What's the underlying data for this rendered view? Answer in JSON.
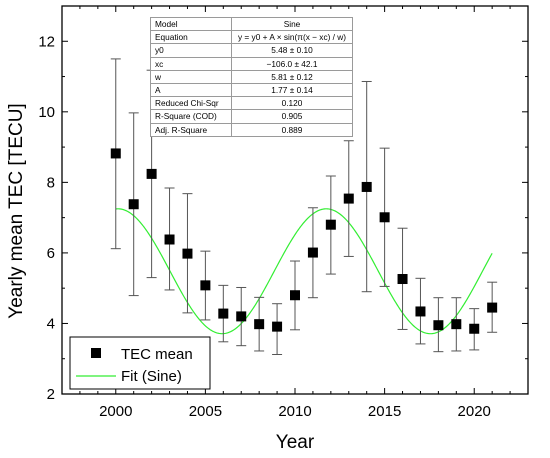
{
  "chart_data": {
    "type": "scatter",
    "xlabel": "Year",
    "ylabel": "Yearly mean TEC [TECU]",
    "xlim": [
      1997,
      2023
    ],
    "ylim": [
      2,
      13
    ],
    "x_ticks": [
      2000,
      2005,
      2010,
      2015,
      2020
    ],
    "y_ticks": [
      2,
      4,
      6,
      8,
      10,
      12
    ],
    "grid": false,
    "legend_position": "bottom-left",
    "series": [
      {
        "name": "TEC mean",
        "kind": "scatter-errorbar",
        "color": "#000000",
        "x": [
          2000,
          2001,
          2002,
          2003,
          2004,
          2005,
          2006,
          2007,
          2008,
          2009,
          2010,
          2011,
          2012,
          2013,
          2014,
          2015,
          2016,
          2017,
          2018,
          2019,
          2020,
          2021
        ],
        "y": [
          8.82,
          7.38,
          8.24,
          6.38,
          5.98,
          5.08,
          4.28,
          4.2,
          3.98,
          3.91,
          4.8,
          6.01,
          6.8,
          7.54,
          7.87,
          7.01,
          5.26,
          4.34,
          3.95,
          3.98,
          3.85,
          4.45
        ],
        "err_low": [
          6.12,
          4.79,
          5.3,
          4.95,
          4.3,
          4.1,
          3.48,
          3.37,
          3.22,
          3.12,
          3.82,
          4.73,
          5.4,
          5.9,
          4.9,
          5.05,
          3.83,
          3.42,
          3.2,
          3.22,
          3.25,
          3.75
        ],
        "err_high": [
          11.5,
          9.97,
          11.18,
          7.84,
          7.68,
          6.05,
          5.08,
          5.02,
          4.74,
          4.56,
          5.77,
          7.28,
          8.18,
          9.18,
          10.86,
          8.97,
          6.7,
          5.28,
          4.73,
          4.73,
          4.42,
          5.17
        ]
      },
      {
        "name": "Fit (Sine)",
        "kind": "line",
        "color": "#33ee33",
        "model": {
          "y0": 5.48,
          "xc": -106.0,
          "w": 5.81,
          "A": 1.77
        },
        "x_range": [
          2000,
          2021
        ]
      }
    ]
  },
  "fit_table": {
    "rows": [
      [
        "Model",
        "Sine"
      ],
      [
        "Equation",
        "y = y0 + A × sin(π(x − xc) / w)"
      ],
      [
        "y0",
        "5.48 ± 0.10"
      ],
      [
        "xc",
        "−106.0 ± 42.1"
      ],
      [
        "w",
        "5.81 ± 0.12"
      ],
      [
        "A",
        "1.77 ± 0.14"
      ],
      [
        "Reduced Chi-Sqr",
        "0.120"
      ],
      [
        "R-Square (COD)",
        "0.905"
      ],
      [
        "Adj. R-Square",
        "0.889"
      ]
    ]
  }
}
